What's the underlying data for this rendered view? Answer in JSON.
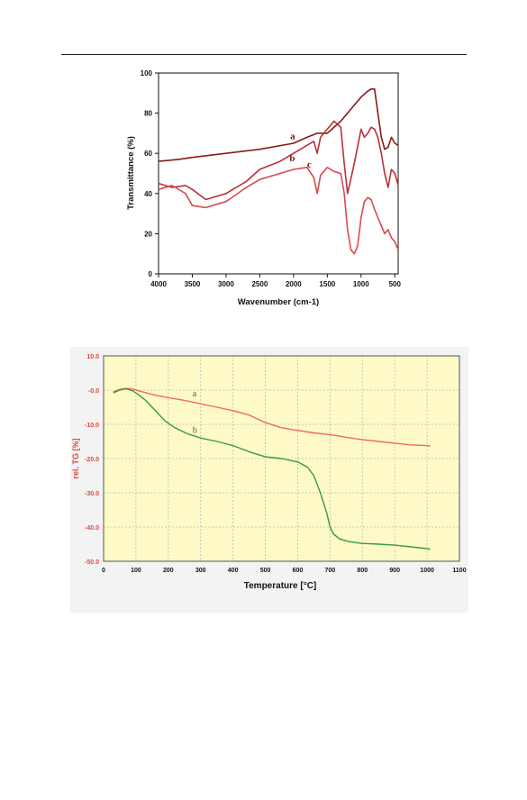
{
  "chart_data": [
    {
      "type": "line",
      "xlabel": "Wavenumber (cm-1)",
      "ylabel": "Transmittance (%)",
      "xlim": [
        4000,
        450
      ],
      "ylim": [
        0,
        100
      ],
      "x_reversed": true,
      "xticks": [
        "4000",
        "3500",
        "3000",
        "2500",
        "2000",
        "1500",
        "1000",
        "500"
      ],
      "yticks": [
        "0",
        "20",
        "40",
        "60",
        "80",
        "100"
      ],
      "grid": false,
      "colors": {
        "a": "#8b1a1a",
        "b": "#b8323a",
        "c": "#d94a50"
      },
      "series": [
        {
          "name": "a",
          "x": [
            4000,
            3700,
            3500,
            3000,
            2500,
            2000,
            1800,
            1650,
            1500,
            1300,
            1150,
            1000,
            900,
            850,
            800,
            750,
            700,
            650,
            600,
            550,
            500,
            450
          ],
          "y": [
            56,
            57,
            58,
            60,
            62,
            65,
            68,
            70,
            70,
            76,
            82,
            88,
            91,
            92,
            92,
            80,
            68,
            62,
            63,
            68,
            65,
            64
          ]
        },
        {
          "name": "b",
          "x": [
            4000,
            3800,
            3600,
            3500,
            3300,
            3000,
            2700,
            2500,
            2200,
            2000,
            1800,
            1700,
            1650,
            1600,
            1500,
            1400,
            1300,
            1250,
            1200,
            1100,
            1000,
            950,
            900,
            850,
            800,
            750,
            700,
            650,
            600,
            550,
            500,
            450
          ],
          "y": [
            45,
            43,
            44,
            42,
            37,
            40,
            46,
            52,
            56,
            60,
            64,
            66,
            60,
            68,
            72,
            76,
            73,
            55,
            40,
            55,
            72,
            68,
            70,
            73,
            72,
            68,
            60,
            50,
            43,
            52,
            50,
            44
          ]
        },
        {
          "name": "c",
          "x": [
            4000,
            3800,
            3600,
            3500,
            3300,
            3000,
            2700,
            2500,
            2200,
            2000,
            1800,
            1700,
            1650,
            1600,
            1500,
            1400,
            1300,
            1250,
            1200,
            1150,
            1100,
            1050,
            1000,
            950,
            900,
            850,
            800,
            750,
            700,
            650,
            600,
            550,
            500,
            450
          ],
          "y": [
            42,
            44,
            40,
            34,
            33,
            36,
            43,
            47,
            50,
            52,
            53,
            48,
            40,
            49,
            53,
            51,
            50,
            40,
            22,
            12,
            10,
            14,
            28,
            36,
            38,
            37,
            32,
            28,
            24,
            20,
            22,
            18,
            16,
            12
          ]
        }
      ],
      "labels": [
        {
          "text": "a",
          "x": 2050,
          "y": 67
        },
        {
          "text": "b",
          "x": 2060,
          "y": 56
        },
        {
          "text": "c",
          "x": 1800,
          "y": 53
        }
      ]
    },
    {
      "type": "line",
      "xlabel": "Temperature  [°C]",
      "ylabel": "rel. TG  [%]",
      "xlim": [
        0,
        1100
      ],
      "ylim": [
        -50,
        10
      ],
      "xticks": [
        "0",
        "100",
        "200",
        "300",
        "400",
        "500",
        "600",
        "700",
        "800",
        "900",
        "1000",
        "1100"
      ],
      "yticks": [
        "10.0",
        "-0.0",
        "-10.0",
        "-20.0",
        "-30.0",
        "-40.0",
        "-50.0"
      ],
      "grid": true,
      "colors": {
        "plot_bg": "#fdfac8",
        "grid": "#b8b8b8",
        "ylabel": "#e2473c",
        "a": "#f26a5a",
        "b": "#3a9a3a"
      },
      "series": [
        {
          "name": "a",
          "x": [
            30,
            50,
            70,
            90,
            120,
            160,
            200,
            250,
            300,
            350,
            400,
            450,
            500,
            550,
            600,
            650,
            700,
            750,
            800,
            850,
            900,
            950,
            1000,
            1010
          ],
          "y": [
            -0.5,
            0.2,
            0.5,
            0.3,
            -0.5,
            -1.5,
            -2.2,
            -3,
            -4,
            -5,
            -6,
            -7.3,
            -9.5,
            -11,
            -11.8,
            -12.5,
            -13,
            -13.8,
            -14.5,
            -15,
            -15.5,
            -16,
            -16.2,
            -16.3
          ]
        },
        {
          "name": "b",
          "x": [
            30,
            50,
            70,
            90,
            110,
            130,
            150,
            170,
            190,
            220,
            260,
            300,
            350,
            400,
            450,
            500,
            550,
            600,
            630,
            650,
            670,
            690,
            700,
            710,
            730,
            760,
            800,
            850,
            900,
            950,
            1000,
            1010
          ],
          "y": [
            -0.8,
            0,
            0.4,
            -0.2,
            -1.5,
            -3,
            -5,
            -7,
            -9,
            -11,
            -12.8,
            -14,
            -15,
            -16.2,
            -18,
            -19.5,
            -20,
            -21,
            -22.5,
            -25,
            -30,
            -36,
            -40,
            -42,
            -43.5,
            -44.3,
            -44.8,
            -45,
            -45.3,
            -45.8,
            -46.3,
            -46.5
          ]
        }
      ],
      "labels": [
        {
          "text": "a",
          "x": 275,
          "y": -1.8
        },
        {
          "text": "b",
          "x": 275,
          "y": -12.5
        }
      ]
    }
  ]
}
